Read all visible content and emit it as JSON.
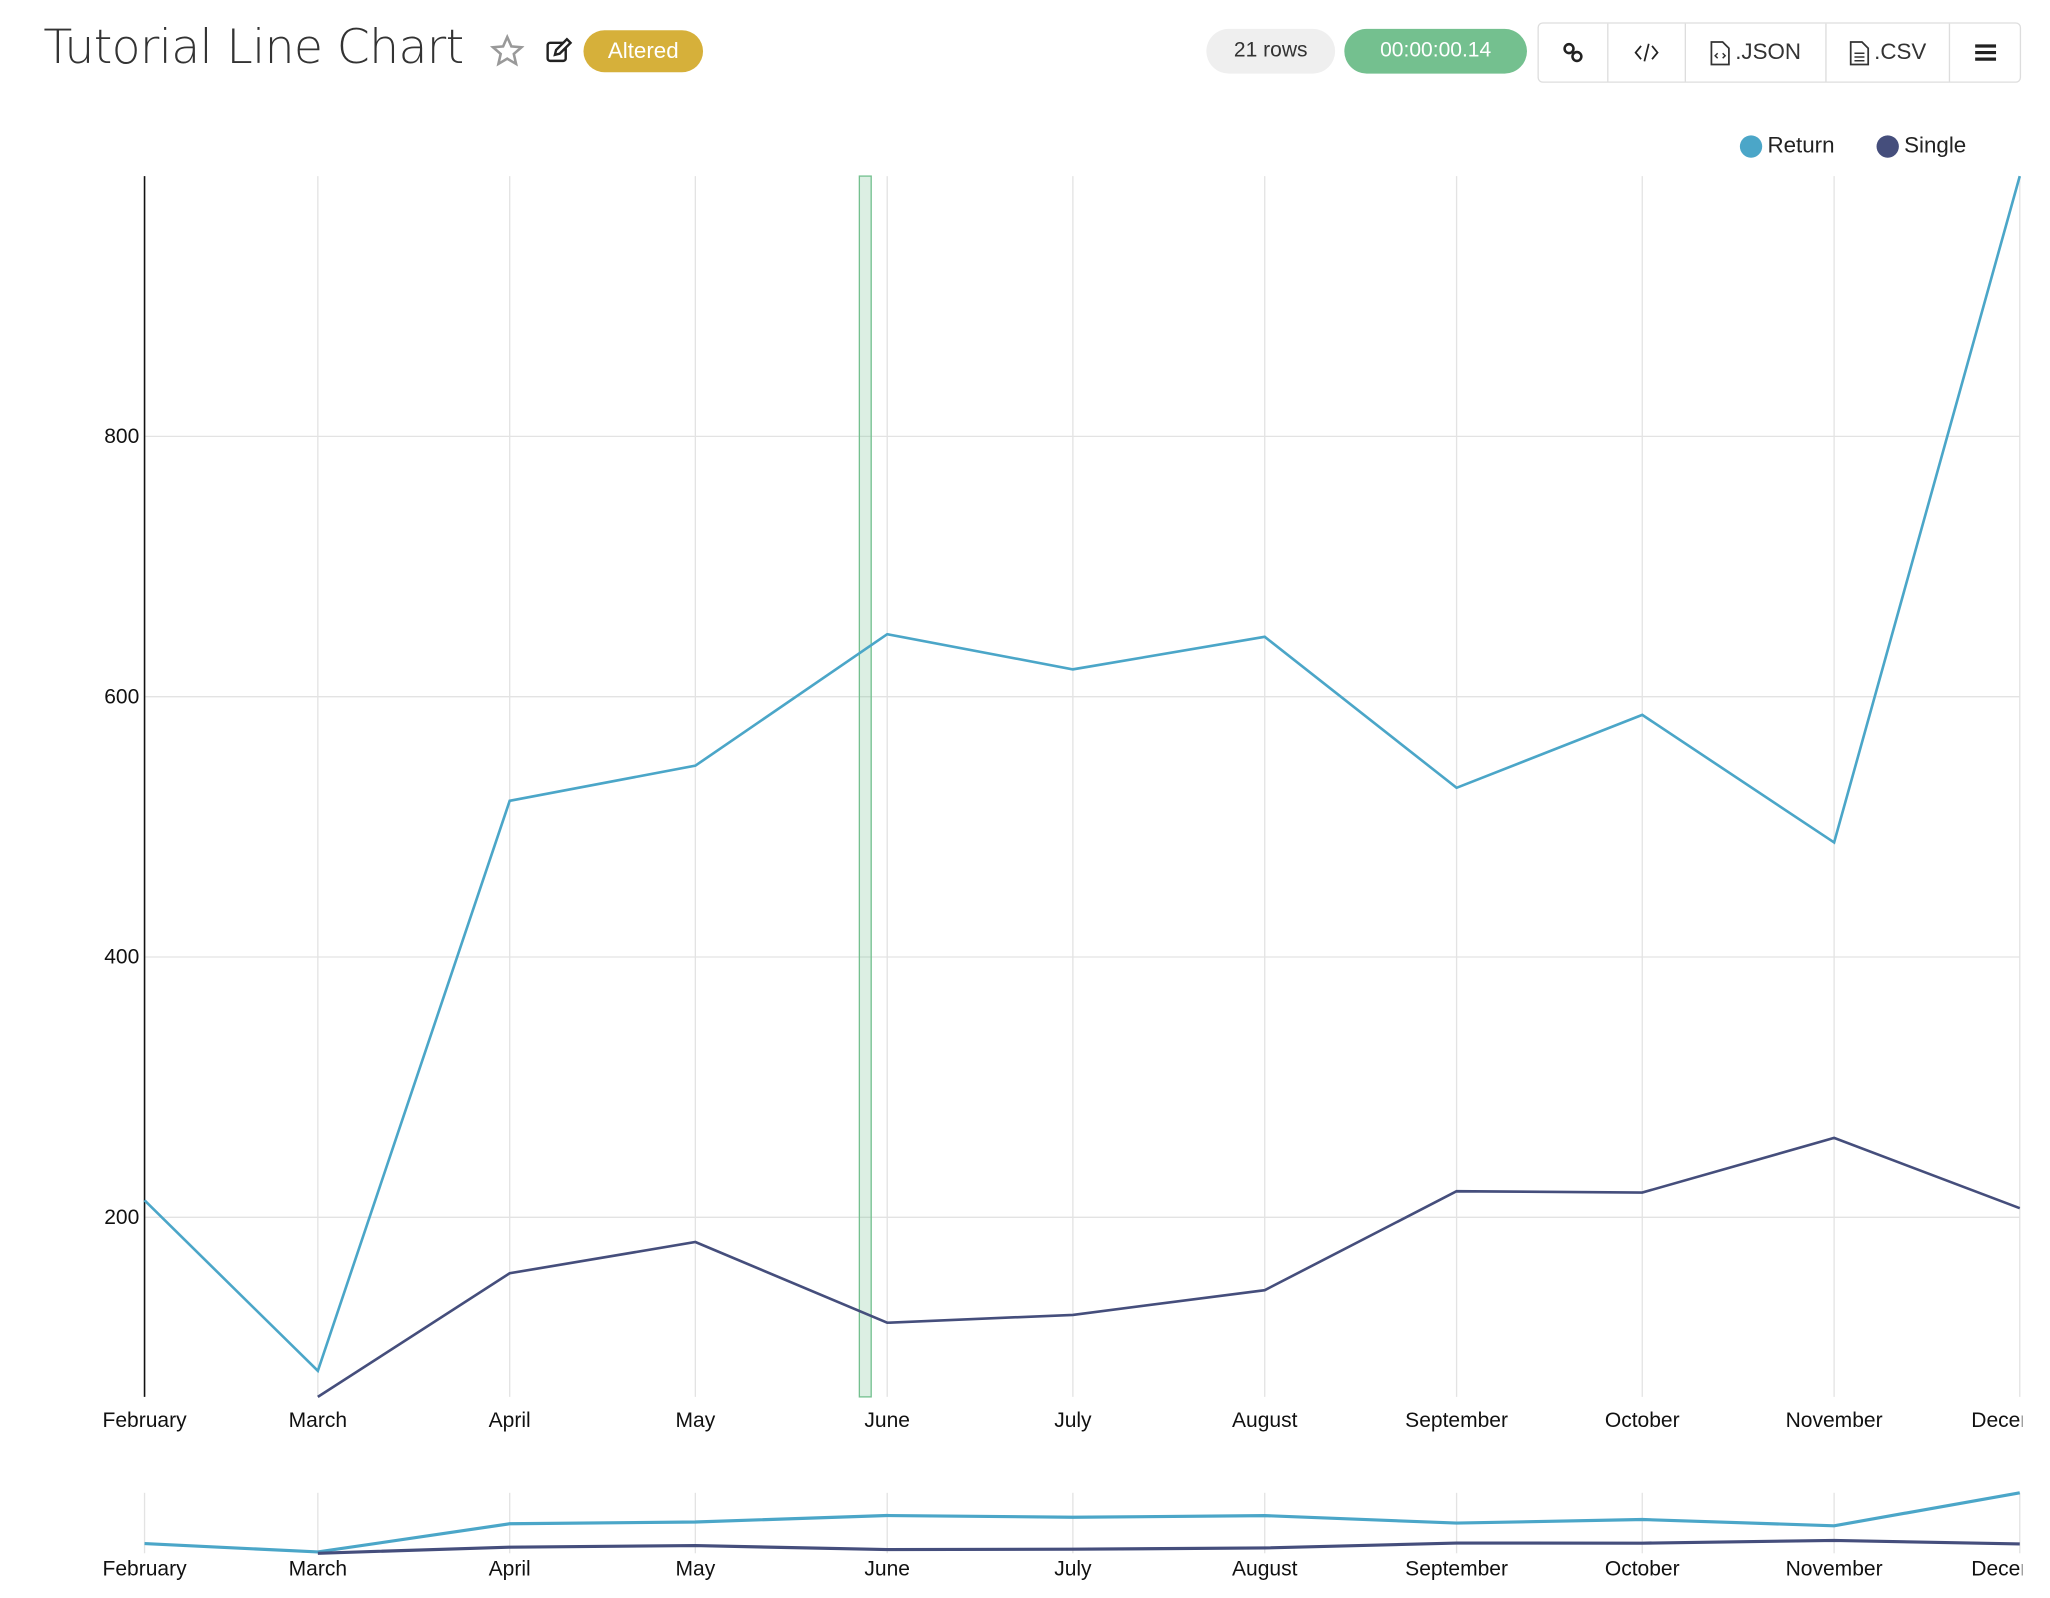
{
  "header": {
    "title": "Tutorial Line Chart",
    "badge": "Altered",
    "rows": "21 rows",
    "timer": "00:00:00.14",
    "buttons": {
      "json": ".JSON",
      "csv": ".CSV"
    }
  },
  "colors": {
    "return": "#4ba6c8",
    "single": "#454e7c",
    "badge": "#d6b03a",
    "timer": "#74c08f",
    "brush": "#74c08f"
  },
  "chart_data": {
    "type": "line",
    "title": "",
    "xlabel": "",
    "ylabel": "",
    "x": [
      "February",
      "March",
      "April",
      "May",
      "June",
      "July",
      "August",
      "September",
      "October",
      "November",
      "December"
    ],
    "ylim": [
      62,
      1000
    ],
    "yticks": [
      200,
      400,
      600,
      800
    ],
    "grid": true,
    "legend_position": "top-right",
    "series": [
      {
        "name": "Return",
        "values": [
          213,
          82,
          520,
          547,
          648,
          621,
          646,
          530,
          586,
          488,
          1000
        ]
      },
      {
        "name": "Single",
        "values": [
          null,
          62,
          157,
          181,
          119,
          125,
          144,
          220,
          219,
          261,
          207
        ]
      }
    ],
    "highlight_between": [
      "May",
      "June"
    ],
    "has_overview_brush_chart": true
  }
}
